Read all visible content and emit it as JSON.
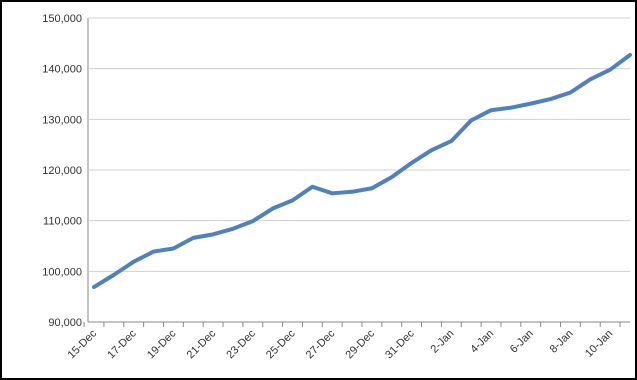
{
  "chart_data": {
    "type": "line",
    "categories": [
      "15-Dec",
      null,
      "17-Dec",
      null,
      "19-Dec",
      null,
      "21-Dec",
      null,
      "23-Dec",
      null,
      "25-Dec",
      null,
      "27-Dec",
      null,
      "29-Dec",
      null,
      "31-Dec",
      null,
      "2-Jan",
      null,
      "4-Jan",
      null,
      "6-Jan",
      null,
      "8-Jan",
      null,
      "10-Jan",
      null
    ],
    "series": [
      {
        "color": "#4f81bd",
        "values": [
          96900,
          99300,
          101900,
          103900,
          104500,
          106600,
          107300,
          108400,
          109900,
          112400,
          114000,
          116700,
          115400,
          115700,
          116400,
          118600,
          121400,
          123900,
          125700,
          129800,
          131800,
          132300,
          133100,
          134000,
          135300,
          137900,
          139800,
          142700
        ]
      }
    ],
    "ylim": [
      90000,
      150000
    ],
    "yticks": [
      {
        "value": 90000,
        "label": "90,000"
      },
      {
        "value": 100000,
        "label": "100,000"
      },
      {
        "value": 110000,
        "label": "110,000"
      },
      {
        "value": 120000,
        "label": "120,000"
      },
      {
        "value": 130000,
        "label": "130,000"
      },
      {
        "value": 140000,
        "label": "140,000"
      },
      {
        "value": 150000,
        "label": "150,000"
      }
    ],
    "grid": true
  }
}
